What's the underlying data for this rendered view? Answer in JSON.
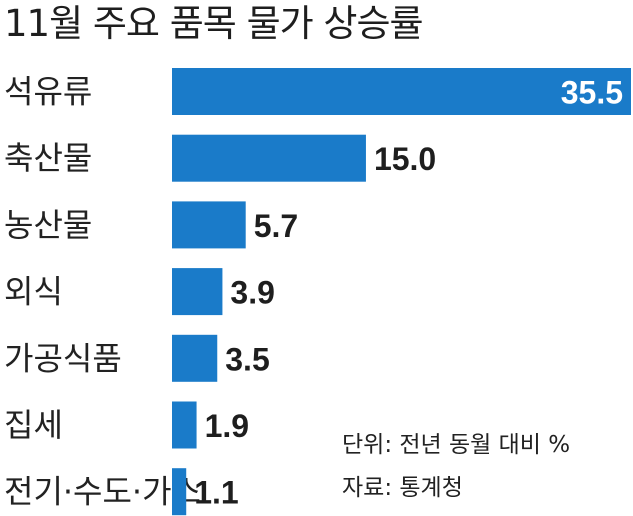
{
  "chart_data": {
    "type": "bar",
    "orientation": "horizontal",
    "title": "11월 주요 품목 물가 상승률",
    "categories": [
      "석유류",
      "축산물",
      "농산물",
      "외식",
      "가공식품",
      "집세",
      "전기·수도·가스"
    ],
    "values": [
      35.5,
      15.0,
      5.7,
      3.9,
      3.5,
      1.9,
      1.1
    ],
    "value_labels": [
      "35.5",
      "15.0",
      "5.7",
      "3.9",
      "3.5",
      "1.9",
      "1.1"
    ],
    "xlim": [
      0,
      35.5
    ],
    "grid": false,
    "legend": "none",
    "unit_note": "단위: 전년 동월 대비 %",
    "source_note": "자료: 통계청",
    "bar_color": "#1a7bc9"
  }
}
